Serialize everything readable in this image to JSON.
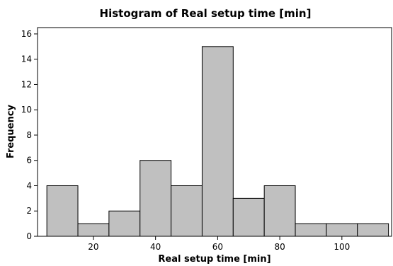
{
  "chart_data": {
    "type": "bar",
    "title": "Histogram of Real setup time [min]",
    "xlabel": "Real setup time [min]",
    "ylabel": "Frequency",
    "bins": [
      {
        "start": 5,
        "end": 15,
        "count": 4
      },
      {
        "start": 15,
        "end": 25,
        "count": 1
      },
      {
        "start": 25,
        "end": 35,
        "count": 2
      },
      {
        "start": 35,
        "end": 45,
        "count": 6
      },
      {
        "start": 45,
        "end": 55,
        "count": 4
      },
      {
        "start": 55,
        "end": 65,
        "count": 15
      },
      {
        "start": 65,
        "end": 75,
        "count": 3
      },
      {
        "start": 75,
        "end": 85,
        "count": 4
      },
      {
        "start": 85,
        "end": 95,
        "count": 1
      },
      {
        "start": 95,
        "end": 105,
        "count": 1
      },
      {
        "start": 105,
        "end": 115,
        "count": 1
      }
    ],
    "xlim": [
      2,
      116
    ],
    "ylim": [
      0,
      16.5
    ],
    "x_ticks": [
      20,
      40,
      60,
      80,
      100
    ],
    "y_ticks": [
      0,
      2,
      4,
      6,
      8,
      10,
      12,
      14,
      16
    ],
    "grid": false,
    "bar_color": "#c0c0c0"
  }
}
